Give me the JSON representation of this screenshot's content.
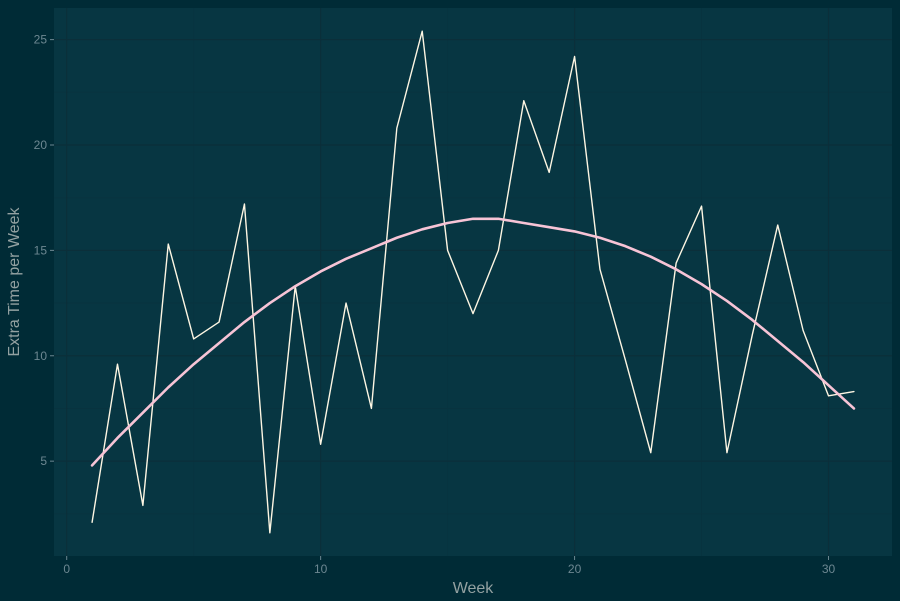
{
  "colors": {
    "page_background": "#002b36",
    "panel_background": "#073642",
    "grid_major": "#0b2f3a",
    "grid_minor": "#08333f",
    "series_line": "#fdf6e3",
    "smooth_line": "#f7c4d6",
    "tick_text": "#6c8791",
    "axis_title_text": "#93a1a1"
  },
  "chart_data": {
    "type": "line",
    "title": "",
    "xlabel": "Week",
    "ylabel": "Extra Time per Week",
    "xlim": [
      -0.5,
      32.5
    ],
    "ylim": [
      0.5,
      26.5
    ],
    "x_ticks": [
      0,
      10,
      20,
      30
    ],
    "y_ticks": [
      5,
      10,
      15,
      20,
      25
    ],
    "x_tick_labels": [
      "0",
      "10",
      "20",
      "30"
    ],
    "y_tick_labels": [
      "5",
      "10",
      "15",
      "20",
      "25"
    ],
    "grid": true,
    "legend": "none",
    "series": [
      {
        "x": [
          1,
          2,
          3,
          4,
          5,
          6,
          7,
          8,
          9,
          10,
          11,
          12,
          13,
          14,
          15,
          16,
          17,
          18,
          19,
          20,
          21,
          22,
          23,
          24,
          25,
          26,
          27,
          28,
          29,
          30,
          31
        ],
        "values": [
          2.1,
          9.6,
          2.9,
          15.3,
          10.8,
          11.6,
          17.2,
          1.6,
          13.3,
          5.8,
          12.5,
          7.5,
          20.8,
          25.4,
          15.0,
          12.0,
          15.0,
          22.1,
          18.7,
          24.2,
          14.1,
          9.8,
          5.4,
          14.4,
          17.1,
          5.4,
          11.0,
          16.2,
          11.2,
          8.1,
          8.3
        ],
        "style": "line"
      },
      {
        "x": [
          1,
          2,
          3,
          4,
          5,
          6,
          7,
          8,
          9,
          10,
          11,
          12,
          13,
          14,
          15,
          16,
          17,
          18,
          19,
          20,
          21,
          22,
          23,
          24,
          25,
          26,
          27,
          28,
          29,
          30,
          31
        ],
        "values": [
          4.8,
          6.1,
          7.3,
          8.5,
          9.6,
          10.6,
          11.6,
          12.5,
          13.3,
          14.0,
          14.6,
          15.1,
          15.6,
          16.0,
          16.3,
          16.5,
          16.5,
          16.3,
          16.1,
          15.9,
          15.6,
          15.2,
          14.7,
          14.1,
          13.4,
          12.6,
          11.7,
          10.7,
          9.7,
          8.6,
          7.5
        ],
        "style": "smooth"
      }
    ]
  }
}
